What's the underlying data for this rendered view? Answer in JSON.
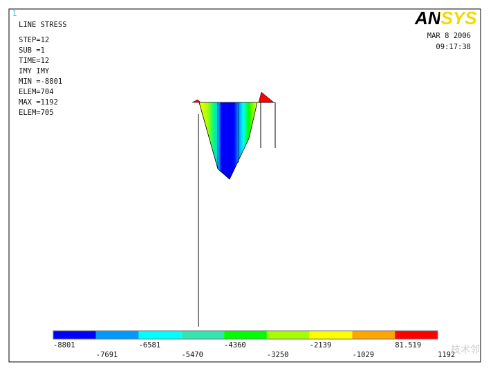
{
  "window_number": "1",
  "info": [
    "LINE STRESS",
    "STEP=12",
    "SUB =1",
    "TIME=12",
    "IMY      IMY",
    "MIN =-8801",
    "ELEM=704",
    "MAX =1192",
    "ELEM=705"
  ],
  "logo": "ANSYS",
  "date": "MAR  8 2006",
  "time": "09:17:38",
  "legend": {
    "colors": [
      "#0000ff",
      "#0099ff",
      "#00ffff",
      "#33e6b0",
      "#00ff00",
      "#a6ff00",
      "#ffff00",
      "#ffa500",
      "#ff0000"
    ],
    "labels": [
      "-8801",
      "-7691",
      "-6581",
      "-5470",
      "-4360",
      "-3250",
      "-2139",
      "-1029",
      "81.519",
      "1192"
    ]
  },
  "watermark": "技术邻"
}
